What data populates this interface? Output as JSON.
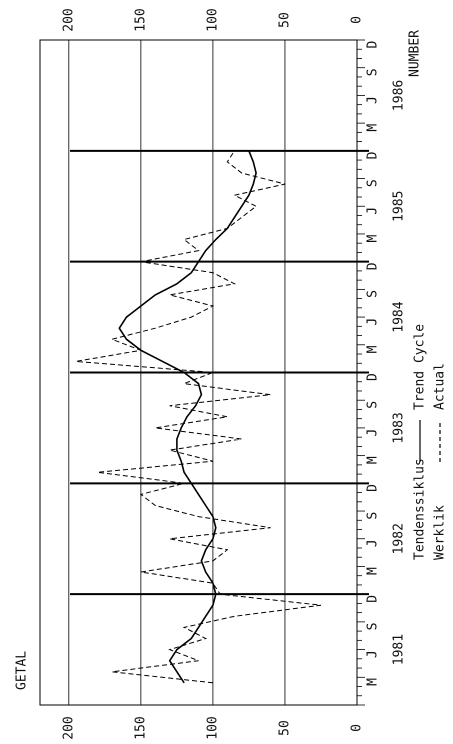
{
  "chart_data": {
    "type": "line",
    "left_label": "GETAL",
    "right_label": "NUMBER",
    "years": [
      "1981",
      "1982",
      "1983",
      "1984",
      "1985",
      "1986"
    ],
    "month_labels": [
      "M",
      "J",
      "S",
      "D"
    ],
    "x": [
      1981.2,
      1981.3,
      1981.4,
      1981.5,
      1981.6,
      1981.7,
      1981.8,
      1981.9,
      1982.0,
      1982.1,
      1982.2,
      1982.3,
      1982.4,
      1982.5,
      1982.6,
      1982.7,
      1982.8,
      1982.9,
      1983.0,
      1983.1,
      1983.2,
      1983.3,
      1983.4,
      1983.5,
      1983.6,
      1983.7,
      1983.8,
      1983.9,
      1984.0,
      1984.1,
      1984.2,
      1984.3,
      1984.4,
      1984.5,
      1984.6,
      1984.7,
      1984.8,
      1984.9,
      1985.0,
      1985.1,
      1985.2,
      1985.3,
      1985.4,
      1985.5,
      1985.6,
      1985.7,
      1985.8,
      1985.9,
      1986.0
    ],
    "series": [
      {
        "name": "Trend Cycle",
        "name_af": "Tendenssiklus",
        "color": "#000000",
        "dash": false,
        "values": [
          120,
          125,
          130,
          125,
          115,
          110,
          105,
          100,
          98,
          100,
          105,
          108,
          105,
          100,
          98,
          100,
          105,
          110,
          115,
          120,
          122,
          125,
          125,
          122,
          118,
          112,
          108,
          110,
          120,
          135,
          150,
          160,
          165,
          160,
          150,
          140,
          125,
          115,
          110,
          105,
          98,
          90,
          85,
          80,
          75,
          72,
          70,
          72,
          75
        ]
      },
      {
        "name": "Actual",
        "name_af": "Werklik",
        "color": "#000000",
        "dash": true,
        "values": [
          100,
          170,
          110,
          130,
          105,
          120,
          85,
          25,
          95,
          100,
          150,
          100,
          90,
          130,
          60,
          110,
          140,
          150,
          120,
          180,
          100,
          130,
          80,
          140,
          90,
          130,
          60,
          120,
          100,
          195,
          150,
          170,
          140,
          115,
          100,
          130,
          85,
          100,
          150,
          110,
          120,
          90,
          80,
          70,
          85,
          50,
          80,
          90,
          85
        ]
      }
    ],
    "xlim": [
      1981,
      1987
    ],
    "xticks": [
      1982,
      1983,
      1984,
      1985,
      1986
    ],
    "ylim": [
      0,
      220
    ],
    "yticks": [
      0,
      50,
      100,
      150,
      200
    ],
    "grid": true
  }
}
